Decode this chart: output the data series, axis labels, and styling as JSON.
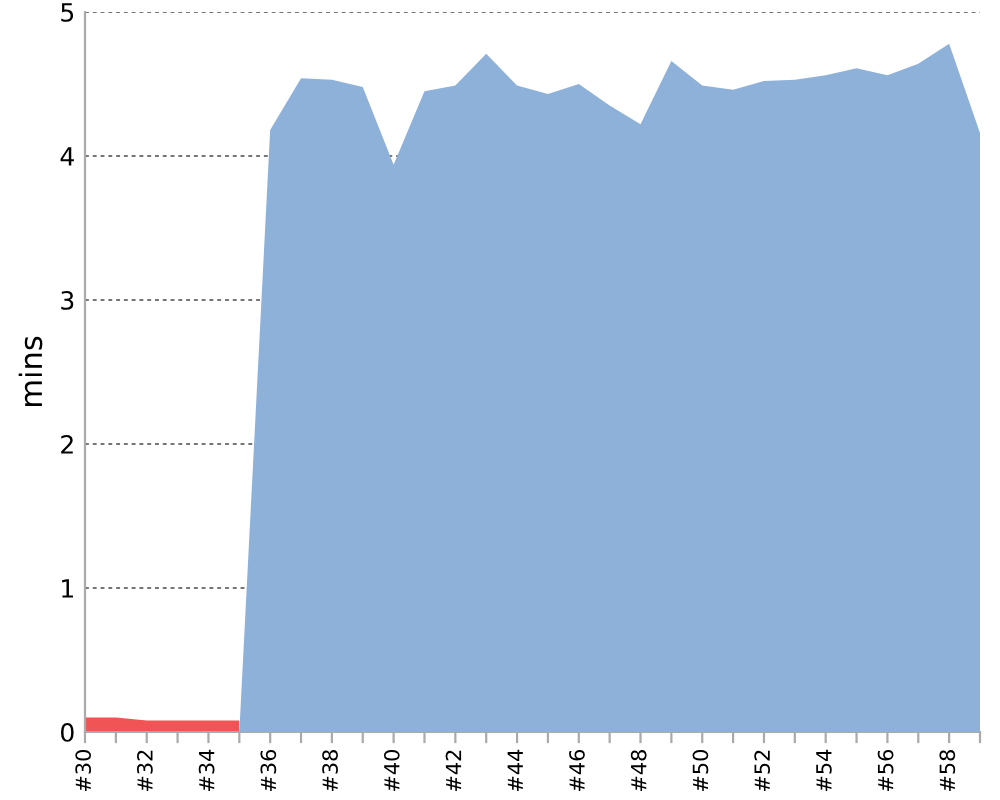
{
  "chart_data": {
    "type": "area",
    "ylabel": "mins",
    "categories": [
      "#30",
      null,
      "#32",
      null,
      "#34",
      null,
      "#36",
      null,
      "#38",
      null,
      "#40",
      null,
      "#42",
      null,
      "#44",
      null,
      "#46",
      null,
      "#48",
      null,
      "#50",
      null,
      "#52",
      null,
      "#54",
      null,
      "#56",
      null,
      "#58",
      null
    ],
    "series": [
      {
        "color": "#f05454",
        "values": [
          0.1,
          0.1,
          0.08,
          0.08,
          0.08,
          0.08,
          null,
          null,
          null,
          null,
          null,
          null,
          null,
          null,
          null,
          null,
          null,
          null,
          null,
          null,
          null,
          null,
          null,
          null,
          null,
          null,
          null,
          null,
          null,
          null
        ]
      },
      {
        "color": "#8eb1da",
        "values": [
          null,
          null,
          null,
          null,
          null,
          0,
          4.18,
          4.54,
          4.53,
          4.48,
          3.94,
          4.45,
          4.49,
          4.71,
          4.49,
          4.43,
          4.5,
          4.35,
          4.22,
          4.66,
          4.49,
          4.46,
          4.52,
          4.53,
          4.56,
          4.61,
          4.56,
          4.64,
          4.78,
          4.16
        ]
      }
    ],
    "ylim": [
      0,
      5
    ],
    "yticks": [
      0,
      1,
      2,
      3,
      4,
      5
    ],
    "grid": "y"
  }
}
